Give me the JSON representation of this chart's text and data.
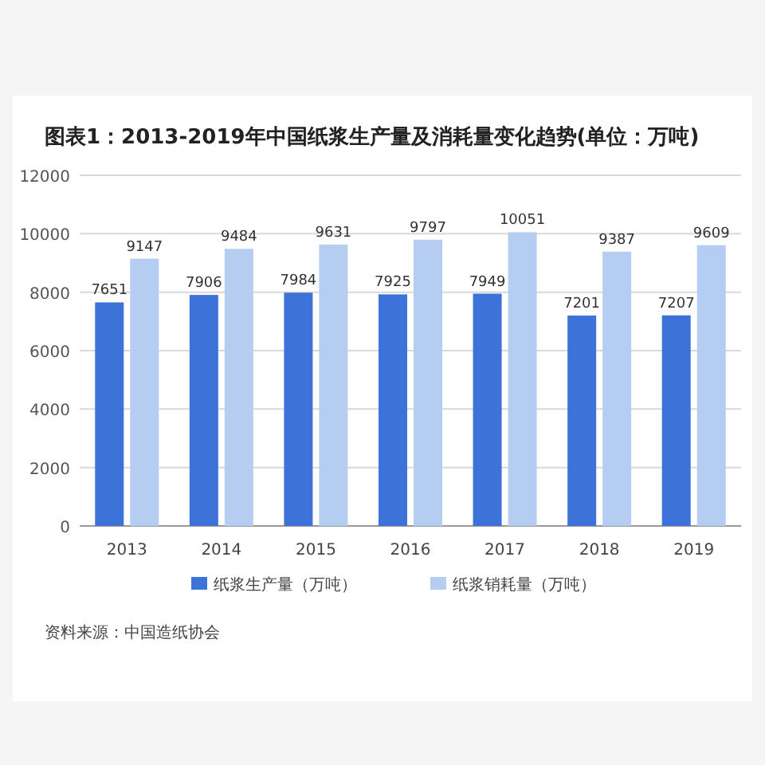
{
  "chart_data": {
    "type": "bar",
    "title": "图表1：2013-2019年中国纸浆生产量及消耗量变化趋势(单位：万吨)",
    "categories": [
      "2013",
      "2014",
      "2015",
      "2016",
      "2017",
      "2018",
      "2019"
    ],
    "series": [
      {
        "name": "纸浆生产量（万吨）",
        "color": "#3d72d9",
        "values": [
          7651,
          7906,
          7984,
          7925,
          7949,
          7201,
          7207
        ]
      },
      {
        "name": "纸浆销耗量（万吨）",
        "color": "#b4cdf0",
        "values": [
          9147,
          9484,
          9631,
          9797,
          10051,
          9387,
          9609
        ]
      }
    ],
    "ylim": [
      0,
      12000
    ],
    "yticks": [
      0,
      2000,
      4000,
      6000,
      8000,
      10000,
      12000
    ],
    "grid": "y",
    "legend": "bottom",
    "data_labels": true,
    "annotations": [
      "资料来源：中国造纸协会"
    ]
  }
}
